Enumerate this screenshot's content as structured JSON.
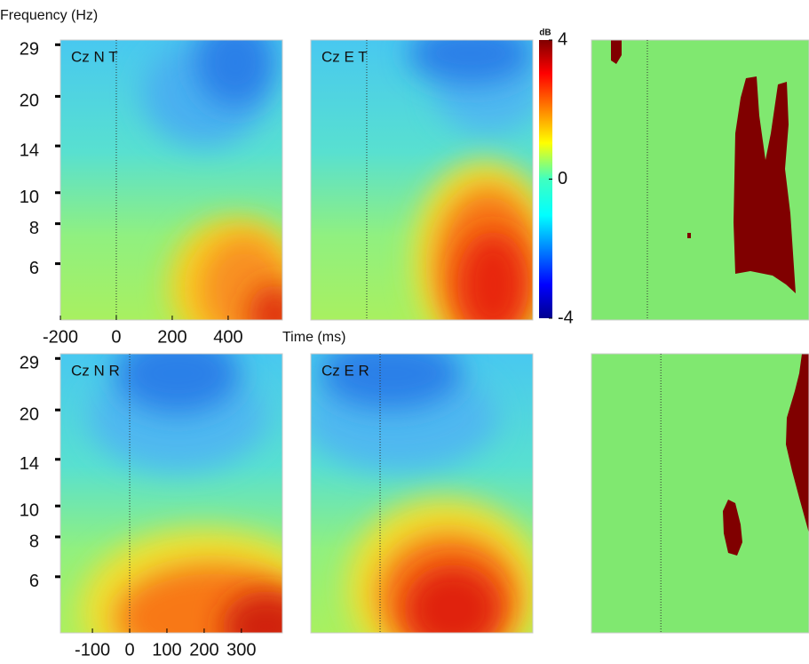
{
  "chart_data": [
    {
      "type": "heatmap",
      "title": "Cz N T",
      "y_label": "Frequency (Hz)",
      "x_label": "Time (ms)",
      "xlim": [
        -200,
        594
      ],
      "xticks": [
        -200,
        0,
        200,
        400
      ],
      "ylim": [
        4,
        30
      ],
      "yticks": [
        6,
        8,
        10,
        14,
        20,
        29
      ],
      "log_y": true
    },
    {
      "type": "heatmap",
      "title": "Cz E T",
      "xlim": [
        -200,
        594
      ],
      "ylim": [
        4,
        30
      ],
      "log_y": true
    },
    {
      "type": "colorbar",
      "label": "dB",
      "ylim": [
        -4,
        4
      ],
      "yticks": [
        -4,
        0,
        4
      ]
    },
    {
      "type": "mask",
      "xlim": [
        -200,
        578
      ],
      "ylim": [
        4,
        30
      ],
      "log_y": true
    },
    {
      "type": "heatmap",
      "title": "Cz N R",
      "xlim": [
        -186,
        410
      ],
      "xticks": [
        -100,
        0,
        100,
        200,
        300
      ],
      "ylim": [
        4,
        30
      ],
      "yticks": [
        6,
        8,
        10,
        14,
        20,
        29
      ],
      "log_y": true
    },
    {
      "type": "heatmap",
      "title": "Cz E R",
      "xlim": [
        -186,
        410
      ],
      "ylim": [
        4,
        30
      ],
      "log_y": true
    },
    {
      "type": "mask",
      "xlim": [
        -186,
        397
      ],
      "ylim": [
        4,
        30
      ],
      "log_y": true
    }
  ]
}
